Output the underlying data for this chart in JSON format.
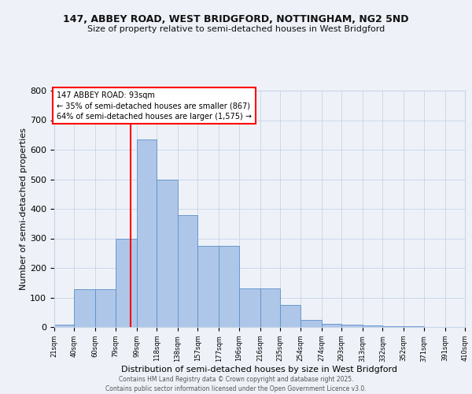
{
  "title_line1": "147, ABBEY ROAD, WEST BRIDGFORD, NOTTINGHAM, NG2 5ND",
  "title_line2": "Size of property relative to semi-detached houses in West Bridgford",
  "xlabel": "Distribution of semi-detached houses by size in West Bridgford",
  "ylabel": "Number of semi-detached properties",
  "bin_edges": [
    21,
    40,
    60,
    79,
    99,
    118,
    138,
    157,
    177,
    196,
    216,
    235,
    254,
    274,
    293,
    313,
    332,
    352,
    371,
    391,
    410
  ],
  "bar_heights": [
    8,
    128,
    128,
    300,
    635,
    500,
    380,
    275,
    275,
    130,
    130,
    75,
    25,
    10,
    8,
    5,
    3,
    3,
    0,
    0
  ],
  "bar_color": "#aec6e8",
  "bar_edge_color": "#5b8fc9",
  "vline_x": 93,
  "vline_color": "red",
  "annotation_title": "147 ABBEY ROAD: 93sqm",
  "annotation_line2": "← 35% of semi-detached houses are smaller (867)",
  "annotation_line3": "64% of semi-detached houses are larger (1,575) →",
  "annotation_box_color": "white",
  "annotation_box_edge_color": "red",
  "bg_color": "#eef2f8",
  "plot_bg_color": "#eef2f8",
  "ylim": [
    0,
    800
  ],
  "yticks": [
    0,
    100,
    200,
    300,
    400,
    500,
    600,
    700,
    800
  ],
  "footer_line1": "Contains HM Land Registry data © Crown copyright and database right 2025.",
  "footer_line2": "Contains public sector information licensed under the Open Government Licence v3.0.",
  "grid_color": "#c8d4e8",
  "title_fontsize": 9,
  "subtitle_fontsize": 8
}
